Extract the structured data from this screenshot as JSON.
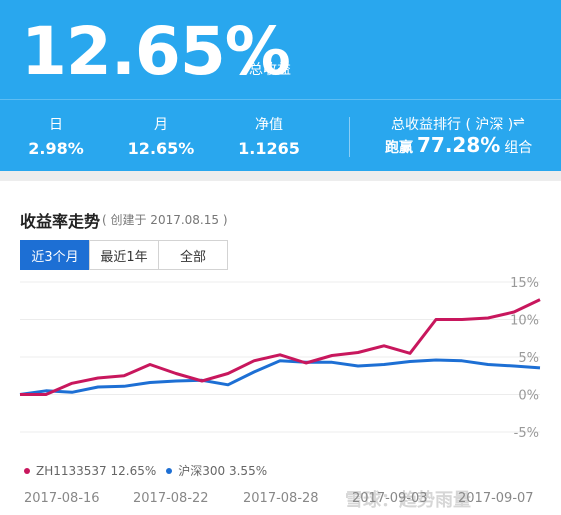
{
  "header": {
    "total_return": "12.65%",
    "total_return_label": "总收益",
    "stats": [
      {
        "label": "日",
        "value": "2.98%"
      },
      {
        "label": "月",
        "value": "12.65%"
      },
      {
        "label": "净值",
        "value": "1.1265"
      }
    ],
    "rank_label": "总收益排行 ( 沪深 )",
    "rank_switch_icon": "swap-arrows-icon",
    "rank_prefix": "跑赢",
    "rank_value": "77.28%",
    "rank_suffix": "组合"
  },
  "chart_card": {
    "title": "收益率走势",
    "subtitle": "( 创建于 2017.08.15 )",
    "tabs": [
      {
        "label": "近3个月",
        "active": true
      },
      {
        "label": "最近1年",
        "active": false
      },
      {
        "label": "全部",
        "active": false
      }
    ],
    "legend": [
      {
        "label": "ZH1133537 12.65%",
        "color": "#c8175d"
      },
      {
        "label": "沪深300 3.55%",
        "color": "#1d6fd4"
      }
    ],
    "watermark": "雪球：趋势雨量"
  },
  "chart_data": {
    "type": "line",
    "y_ticks": [
      "15%",
      "10%",
      "5%",
      "0%",
      "-5%"
    ],
    "x_ticks": [
      "2017-08-16",
      "2017-08-22",
      "2017-08-28",
      "2017-09-03",
      "2017-09-07"
    ],
    "ylim": [
      -5,
      15
    ],
    "grid": true,
    "legend_position": "bottom-left",
    "series": [
      {
        "name": "ZH1133537",
        "color": "#c8175d",
        "values": [
          0.0,
          0.0,
          1.5,
          2.2,
          2.5,
          4.0,
          2.8,
          1.8,
          2.8,
          4.5,
          5.3,
          4.2,
          5.2,
          5.6,
          6.5,
          5.5,
          10.0,
          10.0,
          10.2,
          11.0,
          12.65
        ]
      },
      {
        "name": "沪深300",
        "color": "#1d6fd4",
        "values": [
          0.0,
          0.5,
          0.3,
          1.0,
          1.1,
          1.6,
          1.8,
          1.9,
          1.3,
          3.0,
          4.5,
          4.3,
          4.3,
          3.8,
          4.0,
          4.4,
          4.6,
          4.5,
          4.0,
          3.8,
          3.55
        ]
      }
    ]
  }
}
